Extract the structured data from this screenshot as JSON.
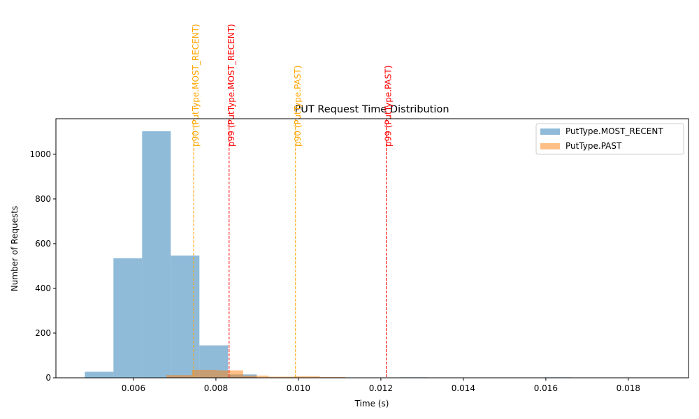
{
  "chart_data": {
    "type": "histogram",
    "title": "PUT Request Time Distribution",
    "x_label": "Time (s)",
    "y_label": "Number of Requests",
    "series": [
      {
        "name": "PutType.MOST_RECENT",
        "color": "#1f77b4",
        "bins": [
          0.00482,
          0.005515,
          0.00621,
          0.006905,
          0.0076,
          0.008295,
          0.00899,
          0.009685,
          0.01038,
          0.011075,
          0.01177,
          0.012465,
          0.01316,
          0.013855,
          0.01455,
          0.015245,
          0.01594,
          0.016635,
          0.01733,
          0.018025,
          0.01872
        ],
        "values": [
          27,
          535,
          1103,
          547,
          145,
          15,
          0,
          0,
          0,
          0,
          0,
          2,
          0,
          0,
          0,
          0,
          2,
          0,
          1,
          1
        ]
      },
      {
        "name": "PutType.PAST",
        "color": "#ff7f0e",
        "bins": [
          0.0068,
          0.00742,
          0.00804,
          0.00866,
          0.00928,
          0.0099,
          0.01052,
          0.01114,
          0.01176,
          0.01238,
          0.013,
          0.01362,
          0.01424,
          0.01486,
          0.01548,
          0.0161,
          0.01672,
          0.01734,
          0.01796,
          0.01858,
          0.0192
        ],
        "values": [
          12,
          35,
          33,
          10,
          5,
          7,
          3,
          0,
          0,
          1,
          0,
          0,
          0,
          0,
          0,
          0,
          0,
          0,
          1,
          0
        ]
      }
    ],
    "vlines": [
      {
        "x": 0.00746,
        "label": "p90 (PutType.MOST_RECENT)",
        "color": "orange"
      },
      {
        "x": 0.00832,
        "label": "p99 (PutType.MOST_RECENT)",
        "color": "red"
      },
      {
        "x": 0.00993,
        "label": "p90 (PutType.PAST)",
        "color": "orange"
      },
      {
        "x": 0.01213,
        "label": "p99 (PutType.PAST)",
        "color": "red"
      }
    ],
    "xlim": [
      0.00412,
      0.01946
    ],
    "ylim": [
      0,
      1159
    ],
    "xticks": [
      0.006,
      0.008,
      {
        "value": 0.01,
        "label": "0.010"
      },
      0.012,
      0.014,
      0.016,
      0.018
    ],
    "yticks": [
      0,
      200,
      400,
      600,
      800,
      1000
    ],
    "legend": "upper right",
    "alpha": 0.5
  }
}
